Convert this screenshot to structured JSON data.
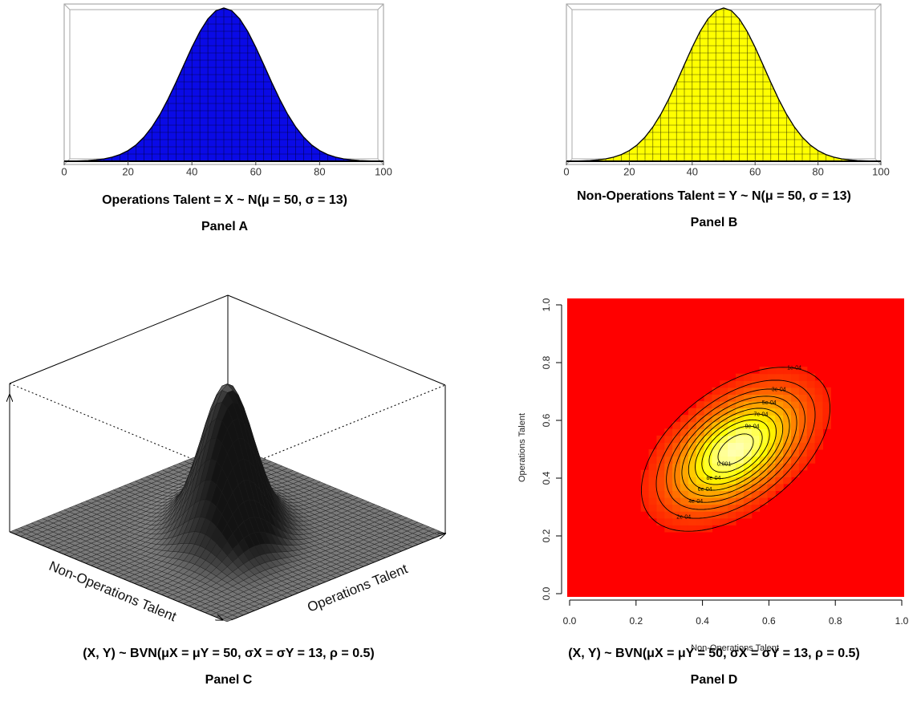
{
  "chart_data": [
    {
      "type": "area",
      "caption": "Operations Talent = X ~ N(μ = 50, σ = 13)",
      "panel": "Panel A",
      "x": [
        0,
        2.5,
        5,
        7.5,
        10,
        12.5,
        15,
        17.5,
        20,
        22.5,
        25,
        27.5,
        30,
        32.5,
        35,
        37.5,
        40,
        42.5,
        45,
        47.5,
        50,
        52.5,
        55,
        57.5,
        60,
        62.5,
        65,
        67.5,
        70,
        72.5,
        75,
        77.5,
        80,
        82.5,
        85,
        87.5,
        90,
        92.5,
        95,
        97.5,
        100
      ],
      "values": [
        1.88e-05,
        3.87e-05,
        7.68e-05,
        0.000147,
        0.00027,
        0.000479,
        0.000819,
        0.00135,
        0.00214,
        0.00327,
        0.00483,
        0.00686,
        0.0094,
        0.0124,
        0.01577,
        0.01933,
        0.02283,
        0.02598,
        0.0285,
        0.03013,
        0.03069,
        0.03013,
        0.0285,
        0.02598,
        0.02283,
        0.01933,
        0.01577,
        0.0124,
        0.0094,
        0.00686,
        0.00483,
        0.00327,
        0.00214,
        0.00135,
        0.000819,
        0.000479,
        0.00027,
        0.000147,
        7.68e-05,
        3.87e-05,
        1.88e-05
      ],
      "xlim": [
        0,
        100
      ],
      "xticks": [
        0,
        20,
        40,
        60,
        80,
        100
      ],
      "ylim": [
        0,
        0.031
      ],
      "color": "#0a0ae6",
      "mesh_color": "#000033"
    },
    {
      "type": "area",
      "caption": "Non-Operations Talent = Y ~ N(μ = 50, σ = 13)",
      "panel": "Panel B",
      "x": [
        0,
        2.5,
        5,
        7.5,
        10,
        12.5,
        15,
        17.5,
        20,
        22.5,
        25,
        27.5,
        30,
        32.5,
        35,
        37.5,
        40,
        42.5,
        45,
        47.5,
        50,
        52.5,
        55,
        57.5,
        60,
        62.5,
        65,
        67.5,
        70,
        72.5,
        75,
        77.5,
        80,
        82.5,
        85,
        87.5,
        90,
        92.5,
        95,
        97.5,
        100
      ],
      "values": [
        1.88e-05,
        3.87e-05,
        7.68e-05,
        0.000147,
        0.00027,
        0.000479,
        0.000819,
        0.00135,
        0.00214,
        0.00327,
        0.00483,
        0.00686,
        0.0094,
        0.0124,
        0.01577,
        0.01933,
        0.02283,
        0.02598,
        0.0285,
        0.03013,
        0.03069,
        0.03013,
        0.0285,
        0.02598,
        0.02283,
        0.01933,
        0.01577,
        0.0124,
        0.0094,
        0.00686,
        0.00483,
        0.00327,
        0.00214,
        0.00135,
        0.000819,
        0.000479,
        0.00027,
        0.000147,
        7.68e-05,
        3.87e-05,
        1.88e-05
      ],
      "xlim": [
        0,
        100
      ],
      "xticks": [
        0,
        20,
        40,
        60,
        80,
        100
      ],
      "ylim": [
        0,
        0.031
      ],
      "color": "#ffff00",
      "mesh_color": "#222200"
    },
    {
      "type": "surface",
      "caption": "(X, Y) ~ BVN(μX = μY = 50, σX = σY = 13, ρ = 0.5)",
      "panel": "Panel C",
      "x_label": "Operations Talent",
      "y_label": "Non-Operations Talent",
      "mu_x": 50,
      "mu_y": 50,
      "sigma_x": 13,
      "sigma_y": 13,
      "rho": 0.5,
      "color": "#808080"
    },
    {
      "type": "contour",
      "caption": "(X, Y) ~ BVN(μX = μY = 50, σX = σY = 13, ρ = 0.5)",
      "panel": "Panel D",
      "x_label": "Non-Operations Talent",
      "y_label": "Operations Talent",
      "mu_x": 50,
      "mu_y": 50,
      "sigma_x": 13,
      "sigma_y": 13,
      "rho": 0.5,
      "xlim": [
        0,
        1
      ],
      "ylim": [
        0,
        1
      ],
      "xticks": [
        {
          "value": 0,
          "label": "0.0"
        },
        0.2,
        0.4,
        0.6,
        0.8,
        {
          "value": 1,
          "label": "1.0"
        }
      ],
      "yticks": [
        {
          "value": 0,
          "label": "0.0"
        },
        0.2,
        0.4,
        0.6,
        0.8,
        {
          "value": 1,
          "label": "1.0"
        }
      ],
      "levels": [
        {
          "value": 0.0001,
          "label": "1e-04"
        },
        {
          "value": 0.0002,
          "label": "2e-04"
        },
        {
          "value": 0.0003,
          "label": "3e-04"
        },
        {
          "value": 0.0004,
          "label": "4e-04"
        },
        {
          "value": 0.0005,
          "label": "5e-04"
        },
        {
          "value": 0.0006,
          "label": "6e-04"
        },
        {
          "value": 0.0007,
          "label": "7e-04"
        },
        {
          "value": 0.0008,
          "label": "8e-04"
        },
        {
          "value": 0.0009,
          "label": "9e-04"
        },
        0.001
      ],
      "color": "#ff0000"
    }
  ]
}
